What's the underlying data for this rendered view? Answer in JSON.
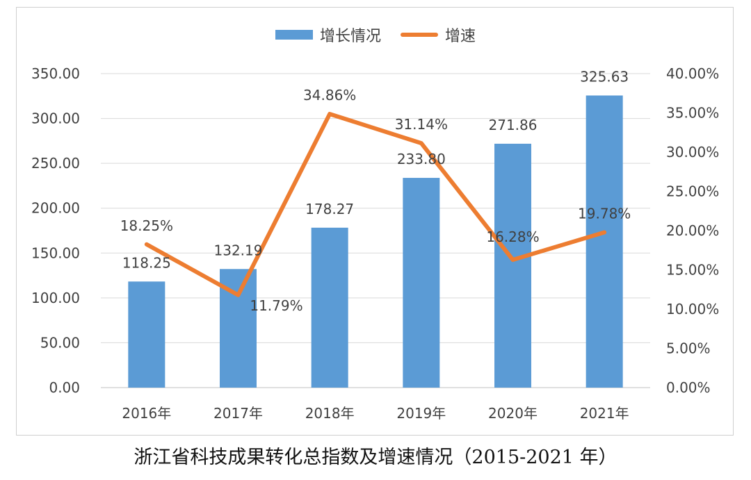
{
  "chart_data": {
    "type": "bar+line",
    "title": "浙江省科技成果转化总指数及增速情况（2015-2021 年）",
    "categories": [
      "2016年",
      "2017年",
      "2018年",
      "2019年",
      "2020年",
      "2021年"
    ],
    "series": [
      {
        "name": "增长情况",
        "type": "bar",
        "axis": "left",
        "values": [
          118.25,
          132.19,
          178.27,
          233.8,
          271.86,
          325.63
        ],
        "labels": [
          "118.25",
          "132.19",
          "178.27",
          "233.80",
          "271.86",
          "325.63"
        ],
        "color": "#5b9bd5"
      },
      {
        "name": "增速",
        "type": "line",
        "axis": "right",
        "values": [
          18.25,
          11.79,
          34.86,
          31.14,
          16.28,
          19.78
        ],
        "labels": [
          "18.25%",
          "11.79%",
          "34.86%",
          "31.14%",
          "16.28%",
          "19.78%"
        ],
        "color": "#ed7d31"
      }
    ],
    "left_axis": {
      "range": [
        0,
        350
      ],
      "ticks": [
        0,
        50,
        100,
        150,
        200,
        250,
        300,
        350
      ],
      "tick_labels": [
        "0.00",
        "50.00",
        "100.00",
        "150.00",
        "200.00",
        "250.00",
        "300.00",
        "350.00"
      ]
    },
    "right_axis": {
      "range": [
        0,
        40
      ],
      "ticks": [
        0,
        5,
        10,
        15,
        20,
        25,
        30,
        35,
        40
      ],
      "tick_labels": [
        "0.00%",
        "5.00%",
        "10.00%",
        "15.00%",
        "20.00%",
        "25.00%",
        "30.00%",
        "35.00%",
        "40.00%"
      ]
    },
    "grid": true,
    "legend": "top-center"
  }
}
